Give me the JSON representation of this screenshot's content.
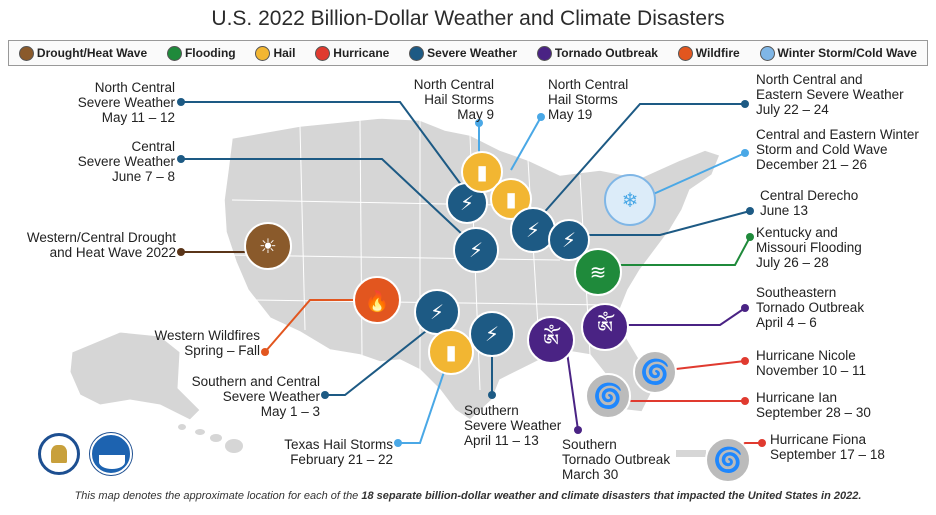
{
  "title": "U.S. 2022 Billion-Dollar Weather and Climate Disasters",
  "legend": [
    {
      "label": "Drought/Heat Wave",
      "color": "#8a5a2b",
      "icon": "drought-icon"
    },
    {
      "label": "Flooding",
      "color": "#1f8a3b",
      "icon": "flooding-icon"
    },
    {
      "label": "Hail",
      "color": "#f2b632",
      "icon": "hail-icon"
    },
    {
      "label": "Hurricane",
      "color": "#e03a2f",
      "icon": "hurricane-icon"
    },
    {
      "label": "Severe Weather",
      "color": "#1d5a84",
      "icon": "severe-weather-icon"
    },
    {
      "label": "Tornado Outbreak",
      "color": "#4a2384",
      "icon": "tornado-icon"
    },
    {
      "label": "Wildfire",
      "color": "#e2561f",
      "icon": "wildfire-icon"
    },
    {
      "label": "Winter Storm/Cold Wave",
      "color": "#7fb6e6",
      "icon": "winter-storm-icon"
    }
  ],
  "events": [
    {
      "name": "North Central\nSevere Weather",
      "date": "May 11 – 12"
    },
    {
      "name": "Central\nSevere Weather",
      "date": "June 7 – 8"
    },
    {
      "name": "Western/Central Drought\nand Heat Wave 2022",
      "date": ""
    },
    {
      "name": "Western Wildfires",
      "date": "Spring – Fall"
    },
    {
      "name": "Southern and Central\nSevere Weather",
      "date": "May 1 – 3"
    },
    {
      "name": "Texas Hail Storms",
      "date": "February 21 – 22"
    },
    {
      "name": "Southern\nSevere Weather",
      "date": "April 11 – 13"
    },
    {
      "name": "Southern\nTornado Outbreak",
      "date": "March 30"
    },
    {
      "name": "North Central\nHail Storms",
      "date": "May 9"
    },
    {
      "name": "North Central\nHail Storms",
      "date": "May 19"
    },
    {
      "name": "North Central and\nEastern Severe Weather",
      "date": "July 22 – 24"
    },
    {
      "name": "Central and Eastern Winter\nStorm and Cold Wave",
      "date": "December 21 – 26"
    },
    {
      "name": "Central Derecho",
      "date": "June 13"
    },
    {
      "name": "Kentucky and\nMissouri Flooding",
      "date": "July 26 – 28"
    },
    {
      "name": "Southeastern\nTornado Outbreak",
      "date": "April 4 – 6"
    },
    {
      "name": "Hurricane Nicole",
      "date": "November 10 – 11"
    },
    {
      "name": "Hurricane Ian",
      "date": "September 28 – 30"
    },
    {
      "name": "Hurricane Fiona",
      "date": "September 17 – 18"
    }
  ],
  "footer": {
    "pre": "This map denotes the approximate location for each of the ",
    "bold": "18 separate billion-dollar weather and climate disasters that impacted the United States in 2022.",
    "post": ""
  },
  "colors": {
    "map_fill": "#d6d6d6",
    "map_stroke": "#ffffff",
    "leader": "#1d5a84"
  }
}
